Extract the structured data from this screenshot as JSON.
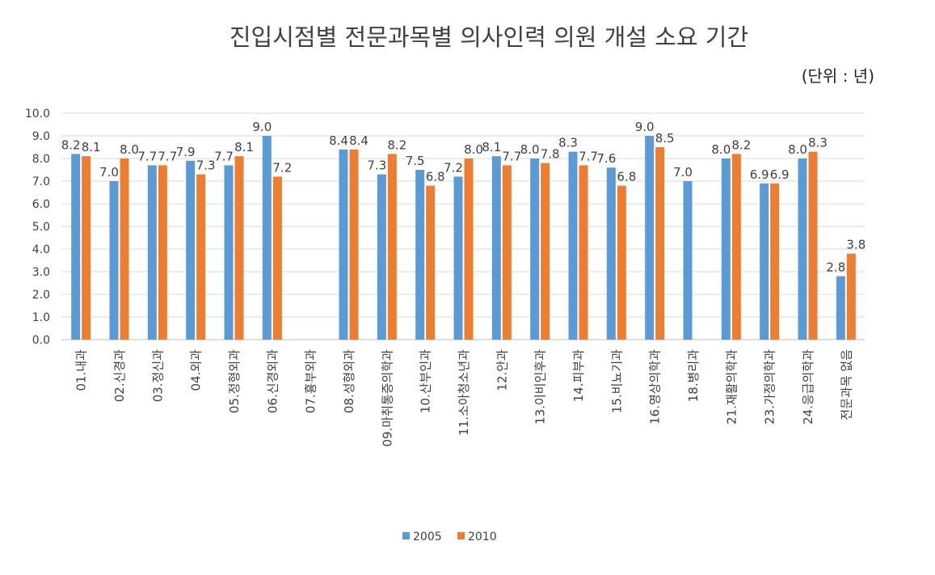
{
  "chart_data": {
    "type": "bar",
    "title": "진입시점별 전문과목별 의사인력 의원 개설 소요 기간",
    "unit_note": "(단위 : 년)",
    "ylim": [
      0,
      10
    ],
    "yticks": [
      "0.0",
      "1.0",
      "2.0",
      "3.0",
      "4.0",
      "5.0",
      "6.0",
      "7.0",
      "8.0",
      "9.0",
      "10.0"
    ],
    "grid": true,
    "legend_position": "bottom",
    "categories": [
      "01.내과",
      "02.신경과",
      "03.정신과",
      "04.외과",
      "05.정형외과",
      "06.신경외과",
      "07.흉부외과",
      "08.성형외과",
      "09.마취통증의학과",
      "10.산부인과",
      "11.소아청소년과",
      "12.안과",
      "13.이비인후과",
      "14.피부과",
      "15.비뇨기과",
      "16.영상의학과",
      "18.병리과",
      "21.재활의학과",
      "23.가정의학과",
      "24.응급의학과",
      "전문과목 없음"
    ],
    "series": [
      {
        "name": "2005",
        "color": "#5b9bd5",
        "values": [
          8.2,
          7.0,
          7.7,
          7.9,
          7.7,
          9.0,
          null,
          8.4,
          7.3,
          7.5,
          7.2,
          8.1,
          8.0,
          8.3,
          7.6,
          9.0,
          7.0,
          8.0,
          6.9,
          8.0,
          2.8
        ]
      },
      {
        "name": "2010",
        "color": "#ed7d31",
        "values": [
          8.1,
          8.0,
          7.7,
          7.3,
          8.1,
          7.2,
          null,
          8.4,
          8.2,
          6.8,
          8.0,
          7.7,
          7.8,
          7.7,
          6.8,
          8.5,
          null,
          8.2,
          6.9,
          8.3,
          3.8
        ]
      }
    ]
  }
}
